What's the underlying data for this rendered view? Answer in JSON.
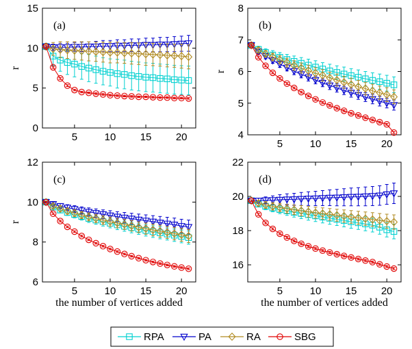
{
  "chart_data": [
    {
      "panel": "(a)",
      "type": "line",
      "ylabel": "r",
      "xlabel": "",
      "ylim": [
        0,
        15
      ],
      "yticks": [
        0,
        5,
        10,
        15
      ],
      "xlim": [
        0.5,
        22
      ],
      "xticks": [
        5,
        10,
        15,
        20
      ],
      "x": [
        1,
        2,
        3,
        4,
        5,
        6,
        7,
        8,
        9,
        10,
        11,
        12,
        13,
        14,
        15,
        16,
        17,
        18,
        19,
        20,
        21
      ],
      "series": [
        {
          "name": "RPA",
          "color": "#00d0d0",
          "marker": "square",
          "values": [
            10.2,
            9.0,
            8.5,
            8.2,
            8.0,
            7.7,
            7.5,
            7.3,
            7.1,
            6.95,
            6.8,
            6.7,
            6.55,
            6.45,
            6.35,
            6.3,
            6.2,
            6.15,
            6.05,
            6.0,
            5.95
          ],
          "err": [
            0.4,
            1.2,
            1.4,
            1.5,
            1.6,
            1.6,
            1.7,
            1.7,
            1.7,
            1.7,
            1.8,
            1.8,
            1.8,
            1.8,
            1.8,
            1.8,
            1.8,
            1.8,
            1.8,
            1.8,
            1.8
          ]
        },
        {
          "name": "PA",
          "color": "#0000cc",
          "marker": "triangle-down",
          "values": [
            10.2,
            10.1,
            10.1,
            10.1,
            10.15,
            10.15,
            10.2,
            10.2,
            10.25,
            10.25,
            10.3,
            10.3,
            10.35,
            10.35,
            10.4,
            10.4,
            10.45,
            10.45,
            10.5,
            10.55,
            10.6
          ],
          "err": [
            0.3,
            0.4,
            0.5,
            0.5,
            0.55,
            0.6,
            0.6,
            0.65,
            0.7,
            0.7,
            0.75,
            0.75,
            0.8,
            0.8,
            0.85,
            0.85,
            0.9,
            0.9,
            0.95,
            0.95,
            1.0
          ]
        },
        {
          "name": "RA",
          "color": "#b08a20",
          "marker": "diamond",
          "values": [
            10.2,
            9.9,
            9.8,
            9.75,
            9.7,
            9.65,
            9.6,
            9.55,
            9.5,
            9.45,
            9.45,
            9.4,
            9.35,
            9.3,
            9.25,
            9.2,
            9.15,
            9.1,
            9.05,
            9.0,
            8.9
          ],
          "err": [
            0.3,
            0.8,
            1.0,
            1.05,
            1.1,
            1.15,
            1.2,
            1.2,
            1.25,
            1.3,
            1.3,
            1.3,
            1.35,
            1.35,
            1.4,
            1.4,
            1.4,
            1.45,
            1.45,
            1.5,
            1.5
          ]
        },
        {
          "name": "SBG",
          "color": "#e00000",
          "marker": "circle",
          "values": [
            10.2,
            7.6,
            6.2,
            5.3,
            4.75,
            4.5,
            4.4,
            4.3,
            4.2,
            4.1,
            4.05,
            4.0,
            3.95,
            3.9,
            3.9,
            3.85,
            3.8,
            3.8,
            3.75,
            3.75,
            3.7
          ],
          "err": [
            0.1,
            0.12,
            0.12,
            0.12,
            0.1,
            0.1,
            0.1,
            0.1,
            0.1,
            0.1,
            0.1,
            0.1,
            0.1,
            0.1,
            0.1,
            0.1,
            0.1,
            0.1,
            0.1,
            0.1,
            0.1
          ]
        }
      ]
    },
    {
      "panel": "(b)",
      "type": "line",
      "ylabel": "r",
      "xlabel": "",
      "ylim": [
        4,
        8
      ],
      "yticks": [
        4,
        5,
        6,
        7,
        8
      ],
      "xlim": [
        0.5,
        22
      ],
      "xticks": [
        5,
        10,
        15,
        20
      ],
      "x": [
        1,
        2,
        3,
        4,
        5,
        6,
        7,
        8,
        9,
        10,
        11,
        12,
        13,
        14,
        15,
        16,
        17,
        18,
        19,
        20,
        21
      ],
      "series": [
        {
          "name": "RPA",
          "color": "#00d0d0",
          "marker": "square",
          "values": [
            6.83,
            6.7,
            6.6,
            6.52,
            6.45,
            6.38,
            6.32,
            6.26,
            6.2,
            6.14,
            6.08,
            6.02,
            5.97,
            5.92,
            5.87,
            5.82,
            5.77,
            5.72,
            5.68,
            5.63,
            5.58
          ],
          "err": [
            0.05,
            0.1,
            0.12,
            0.14,
            0.15,
            0.16,
            0.17,
            0.18,
            0.19,
            0.2,
            0.2,
            0.21,
            0.21,
            0.22,
            0.22,
            0.23,
            0.23,
            0.24,
            0.24,
            0.25,
            0.25
          ]
        },
        {
          "name": "PA",
          "color": "#0000cc",
          "marker": "triangle-down",
          "values": [
            6.83,
            6.63,
            6.48,
            6.35,
            6.23,
            6.12,
            6.01,
            5.91,
            5.82,
            5.73,
            5.64,
            5.56,
            5.48,
            5.4,
            5.33,
            5.26,
            5.19,
            5.13,
            5.06,
            5.0,
            4.94
          ],
          "err": [
            0.05,
            0.07,
            0.08,
            0.09,
            0.1,
            0.1,
            0.11,
            0.11,
            0.12,
            0.12,
            0.12,
            0.13,
            0.13,
            0.13,
            0.14,
            0.14,
            0.14,
            0.15,
            0.15,
            0.15,
            0.16
          ]
        },
        {
          "name": "RA",
          "color": "#b08a20",
          "marker": "diamond",
          "values": [
            6.83,
            6.68,
            6.56,
            6.46,
            6.37,
            6.28,
            6.19,
            6.11,
            6.03,
            5.95,
            5.88,
            5.8,
            5.73,
            5.66,
            5.59,
            5.52,
            5.46,
            5.39,
            5.33,
            5.27,
            5.2
          ],
          "err": [
            0.05,
            0.08,
            0.1,
            0.12,
            0.13,
            0.14,
            0.15,
            0.16,
            0.17,
            0.17,
            0.18,
            0.18,
            0.19,
            0.19,
            0.2,
            0.2,
            0.2,
            0.21,
            0.21,
            0.22,
            0.22
          ]
        },
        {
          "name": "SBG",
          "color": "#e00000",
          "marker": "circle",
          "values": [
            6.83,
            6.45,
            6.18,
            5.96,
            5.78,
            5.62,
            5.48,
            5.35,
            5.23,
            5.12,
            5.02,
            4.93,
            4.84,
            4.76,
            4.68,
            4.61,
            4.54,
            4.47,
            4.4,
            4.33,
            4.07
          ],
          "err": [
            0.02,
            0.03,
            0.03,
            0.03,
            0.03,
            0.03,
            0.03,
            0.03,
            0.03,
            0.03,
            0.03,
            0.03,
            0.03,
            0.03,
            0.03,
            0.03,
            0.03,
            0.03,
            0.03,
            0.03,
            0.03
          ]
        }
      ]
    },
    {
      "panel": "(c)",
      "type": "line",
      "ylabel": "r",
      "xlabel": "the number of vertices added",
      "ylim": [
        6,
        12
      ],
      "yticks": [
        6,
        8,
        10,
        12
      ],
      "xlim": [
        0.5,
        22
      ],
      "xticks": [
        5,
        10,
        15,
        20
      ],
      "x": [
        1,
        2,
        3,
        4,
        5,
        6,
        7,
        8,
        9,
        10,
        11,
        12,
        13,
        14,
        15,
        16,
        17,
        18,
        19,
        20,
        21
      ],
      "series": [
        {
          "name": "RPA",
          "color": "#00d0d0",
          "marker": "square",
          "values": [
            10.0,
            9.75,
            9.6,
            9.48,
            9.38,
            9.28,
            9.18,
            9.1,
            9.02,
            8.94,
            8.86,
            8.79,
            8.72,
            8.65,
            8.58,
            8.52,
            8.46,
            8.4,
            8.34,
            8.28,
            8.22
          ],
          "err": [
            0.05,
            0.1,
            0.13,
            0.15,
            0.17,
            0.18,
            0.2,
            0.21,
            0.22,
            0.23,
            0.24,
            0.25,
            0.26,
            0.27,
            0.28,
            0.29,
            0.3,
            0.3,
            0.31,
            0.32,
            0.33
          ]
        },
        {
          "name": "PA",
          "color": "#0000cc",
          "marker": "triangle-down",
          "values": [
            10.0,
            9.9,
            9.8,
            9.72,
            9.65,
            9.58,
            9.51,
            9.45,
            9.39,
            9.33,
            9.27,
            9.22,
            9.17,
            9.12,
            9.07,
            9.02,
            8.97,
            8.92,
            8.87,
            8.8,
            8.75
          ],
          "err": [
            0.05,
            0.1,
            0.12,
            0.15,
            0.17,
            0.18,
            0.2,
            0.21,
            0.22,
            0.24,
            0.25,
            0.26,
            0.27,
            0.28,
            0.29,
            0.3,
            0.31,
            0.32,
            0.33,
            0.34,
            0.35
          ]
        },
        {
          "name": "RA",
          "color": "#b08a20",
          "marker": "diamond",
          "values": [
            10.0,
            9.8,
            9.67,
            9.55,
            9.45,
            9.35,
            9.26,
            9.18,
            9.1,
            9.02,
            8.95,
            8.88,
            8.81,
            8.74,
            8.67,
            8.6,
            8.54,
            8.48,
            8.42,
            8.36,
            8.3
          ],
          "err": [
            0.05,
            0.1,
            0.13,
            0.15,
            0.17,
            0.18,
            0.2,
            0.21,
            0.22,
            0.23,
            0.24,
            0.25,
            0.26,
            0.27,
            0.28,
            0.29,
            0.3,
            0.3,
            0.31,
            0.32,
            0.33
          ]
        },
        {
          "name": "SBG",
          "color": "#e00000",
          "marker": "circle",
          "values": [
            10.0,
            9.42,
            9.05,
            8.76,
            8.52,
            8.3,
            8.11,
            7.94,
            7.79,
            7.65,
            7.52,
            7.4,
            7.29,
            7.19,
            7.09,
            7.0,
            6.92,
            6.85,
            6.78,
            6.72,
            6.66
          ],
          "err": [
            0.03,
            0.04,
            0.04,
            0.04,
            0.04,
            0.04,
            0.04,
            0.04,
            0.04,
            0.04,
            0.04,
            0.04,
            0.04,
            0.04,
            0.04,
            0.04,
            0.04,
            0.04,
            0.04,
            0.04,
            0.04
          ]
        }
      ]
    },
    {
      "panel": "(d)",
      "type": "line",
      "ylabel": "",
      "xlabel": "the number of vertices added",
      "ylim": [
        15,
        22
      ],
      "yticks": [
        16,
        18,
        20,
        22
      ],
      "xlim": [
        0.5,
        22
      ],
      "xticks": [
        5,
        10,
        15,
        20
      ],
      "x": [
        1,
        2,
        3,
        4,
        5,
        6,
        7,
        8,
        9,
        10,
        11,
        12,
        13,
        14,
        15,
        16,
        17,
        18,
        19,
        20,
        21
      ],
      "series": [
        {
          "name": "RPA",
          "color": "#00d0d0",
          "marker": "square",
          "values": [
            19.75,
            19.55,
            19.42,
            19.32,
            19.23,
            19.15,
            19.07,
            19.0,
            18.93,
            18.86,
            18.79,
            18.72,
            18.66,
            18.59,
            18.52,
            18.46,
            18.39,
            18.32,
            18.2,
            18.05,
            17.95
          ],
          "err": [
            0.05,
            0.15,
            0.2,
            0.22,
            0.24,
            0.26,
            0.28,
            0.3,
            0.32,
            0.33,
            0.34,
            0.35,
            0.36,
            0.37,
            0.38,
            0.39,
            0.4,
            0.4,
            0.41,
            0.42,
            0.43
          ]
        },
        {
          "name": "PA",
          "color": "#0000cc",
          "marker": "triangle-down",
          "values": [
            19.75,
            19.75,
            19.77,
            19.78,
            19.8,
            19.82,
            19.83,
            19.85,
            19.87,
            19.88,
            19.9,
            19.92,
            19.93,
            19.95,
            19.97,
            19.98,
            20.0,
            20.02,
            20.05,
            20.12,
            20.18
          ],
          "err": [
            0.05,
            0.15,
            0.2,
            0.25,
            0.3,
            0.33,
            0.35,
            0.38,
            0.4,
            0.42,
            0.44,
            0.46,
            0.48,
            0.5,
            0.52,
            0.53,
            0.55,
            0.56,
            0.57,
            0.58,
            0.6
          ]
        },
        {
          "name": "RA",
          "color": "#b08a20",
          "marker": "diamond",
          "values": [
            19.75,
            19.6,
            19.5,
            19.42,
            19.35,
            19.28,
            19.22,
            19.16,
            19.1,
            19.05,
            19.0,
            18.95,
            18.9,
            18.85,
            18.8,
            18.75,
            18.7,
            18.65,
            18.6,
            18.55,
            18.5
          ],
          "err": [
            0.05,
            0.15,
            0.2,
            0.22,
            0.24,
            0.26,
            0.28,
            0.3,
            0.31,
            0.32,
            0.33,
            0.34,
            0.35,
            0.36,
            0.37,
            0.38,
            0.39,
            0.4,
            0.4,
            0.41,
            0.42
          ]
        },
        {
          "name": "SBG",
          "color": "#e00000",
          "marker": "circle",
          "values": [
            19.75,
            18.95,
            18.45,
            18.1,
            17.82,
            17.6,
            17.4,
            17.23,
            17.08,
            16.95,
            16.83,
            16.72,
            16.62,
            16.52,
            16.43,
            16.34,
            16.25,
            16.16,
            16.03,
            15.9,
            15.78
          ],
          "err": [
            0.05,
            0.06,
            0.06,
            0.06,
            0.06,
            0.06,
            0.06,
            0.06,
            0.06,
            0.06,
            0.06,
            0.06,
            0.06,
            0.06,
            0.06,
            0.06,
            0.06,
            0.06,
            0.06,
            0.06,
            0.06
          ]
        }
      ]
    }
  ],
  "legend": {
    "placement": "bottom-center",
    "entries": [
      {
        "label": "RPA",
        "color": "#00d0d0",
        "marker": "square"
      },
      {
        "label": "PA",
        "color": "#0000cc",
        "marker": "triangle-down"
      },
      {
        "label": "RA",
        "color": "#b08a20",
        "marker": "diamond"
      },
      {
        "label": "SBG",
        "color": "#e00000",
        "marker": "circle"
      }
    ]
  }
}
